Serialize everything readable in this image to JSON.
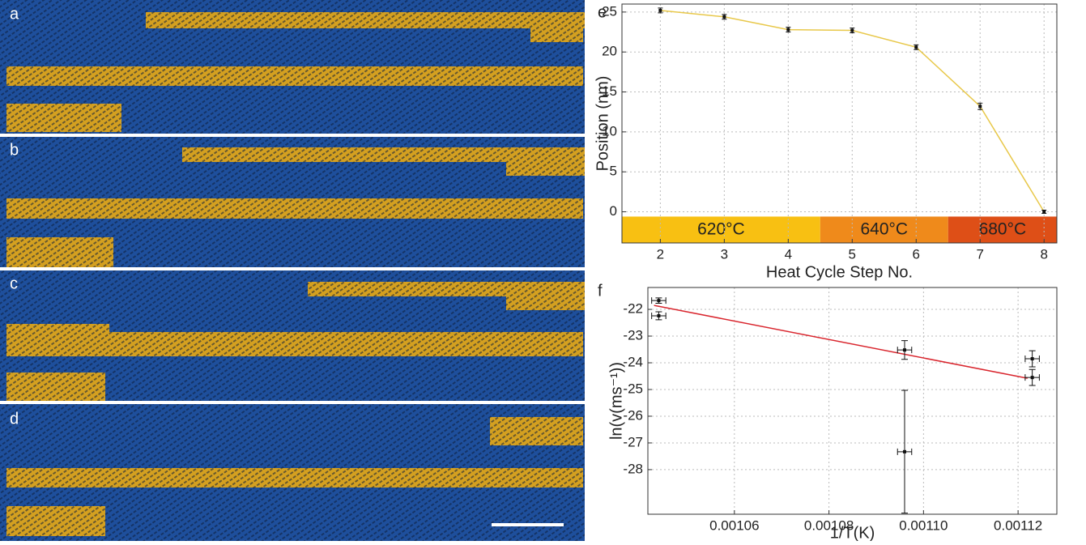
{
  "panels": {
    "labels": [
      "a",
      "b",
      "c",
      "d"
    ]
  },
  "chart_data": [
    {
      "type": "line",
      "panel_label": "e",
      "xlabel": "Heat Cycle Step No.",
      "ylabel": "Position (nm)",
      "x": [
        2,
        3,
        4,
        5,
        6,
        7,
        8
      ],
      "values": [
        25.2,
        24.4,
        22.8,
        22.7,
        20.6,
        13.2,
        0
      ],
      "errors": [
        0.3,
        0.3,
        0.3,
        0.3,
        0.3,
        0.4,
        0.2
      ],
      "color": "#e8c84a",
      "xlim": [
        1.4,
        8.2
      ],
      "ylim": [
        -3.9,
        26
      ],
      "xticks": [
        2,
        3,
        4,
        5,
        6,
        7,
        8
      ],
      "yticks": [
        0,
        5,
        10,
        15,
        20,
        25
      ],
      "grid": true,
      "bands": [
        {
          "label": "620°C",
          "xrange": [
            1.4,
            4.5
          ],
          "color": "#f8c012"
        },
        {
          "label": "640°C",
          "xrange": [
            4.5,
            6.5
          ],
          "color": "#ef8a1b"
        },
        {
          "label": "680°C",
          "xrange": [
            6.5,
            8.2
          ],
          "color": "#de4f17"
        }
      ],
      "band_yrange": [
        -3.9,
        -0.6
      ]
    },
    {
      "type": "scatter",
      "panel_label": "f",
      "xlabel": "1/T(K)",
      "ylabel": "ln(v(ms⁻¹))",
      "x": [
        0.001044,
        0.001044,
        0.001096,
        0.001096,
        0.001123,
        0.001123
      ],
      "values": [
        -21.67,
        -22.24,
        -23.52,
        -27.33,
        -23.85,
        -24.55
      ],
      "xerr": [
        1.5e-06,
        1.5e-06,
        1.5e-06,
        1.5e-06,
        1.5e-06,
        1.5e-06
      ],
      "yerr": [
        0.1,
        0.15,
        0.35,
        2.3,
        0.3,
        0.3
      ],
      "color": "#111111",
      "fit": {
        "color": "#d9262e",
        "x": [
          0.001043,
          0.001122
        ],
        "values": [
          -21.85,
          -24.58
        ]
      },
      "xlim": [
        0.0010417,
        0.0011282
      ],
      "ylim": [
        -29.67,
        -21.18
      ],
      "xticks": [
        0.00106,
        0.00108,
        {
          "value": 0.0011,
          "label": "0.00110"
        },
        0.00112
      ],
      "yticks": [
        -22,
        -23,
        -24,
        -25,
        -26,
        -27,
        -28
      ],
      "grid": true
    }
  ]
}
